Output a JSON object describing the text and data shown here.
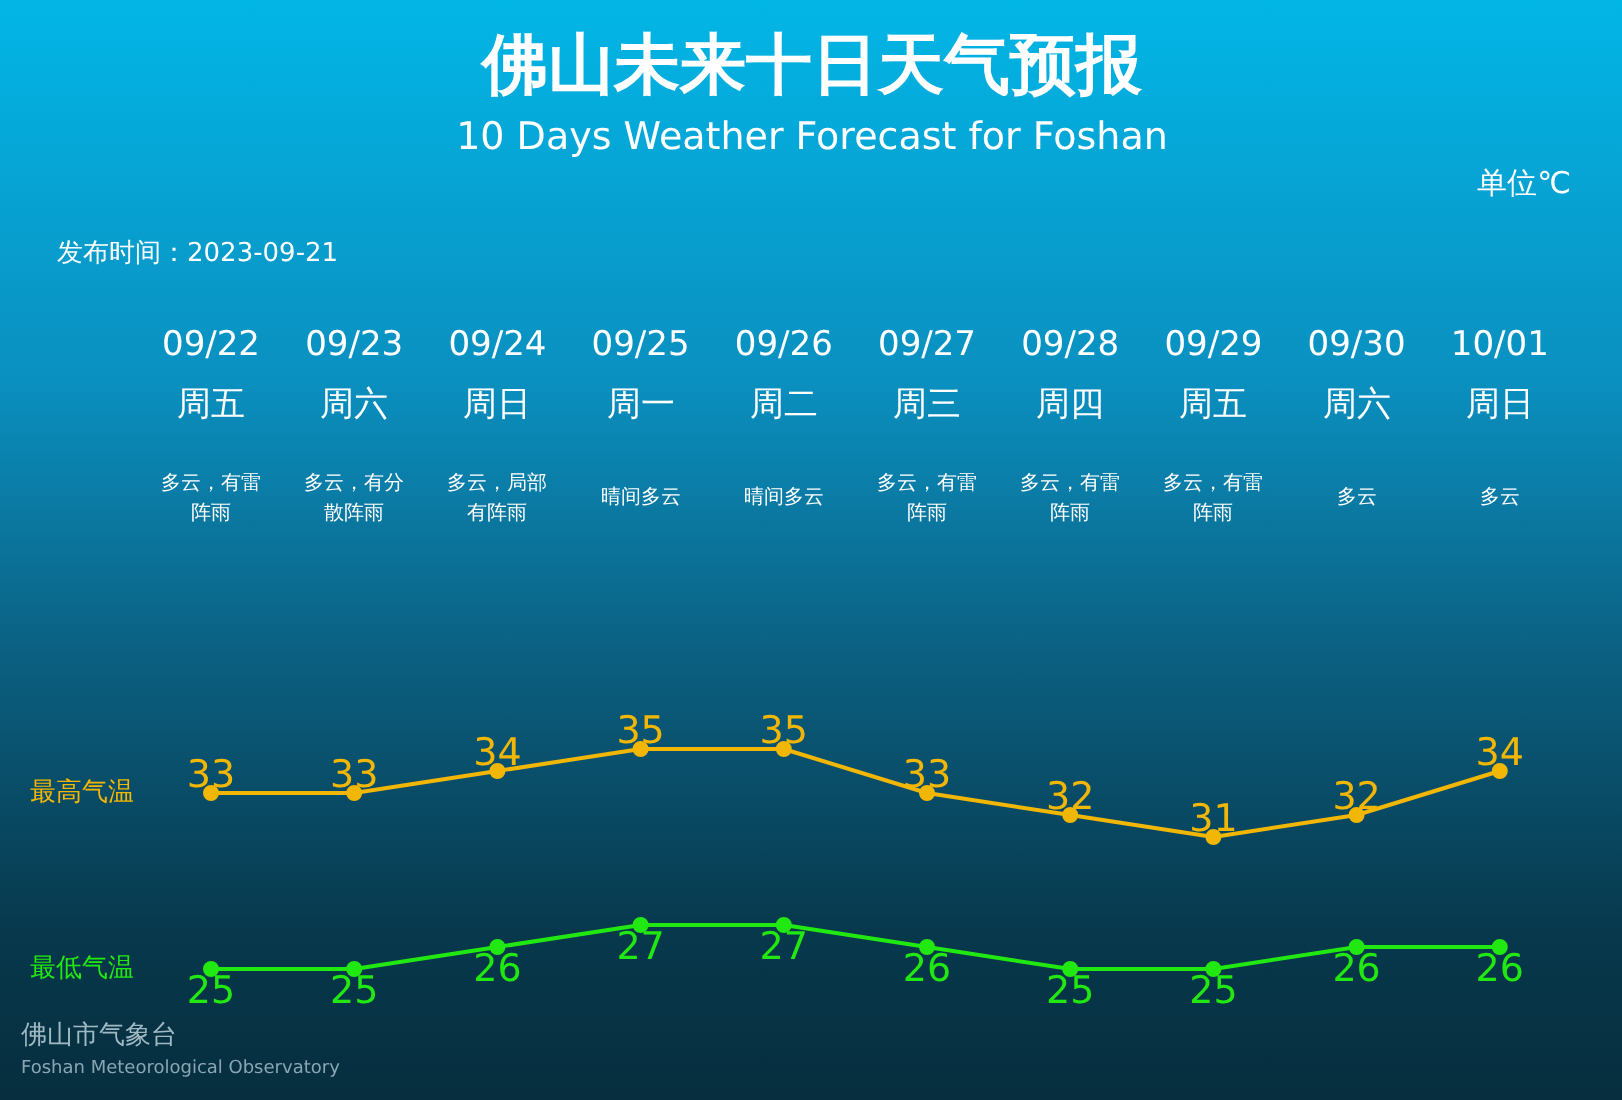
{
  "chart_data": {
    "type": "line",
    "title": "佛山未来十日天气预报",
    "subtitle": "10 Days Weather Forecast for Foshan",
    "categories": [
      "09/22\n周五",
      "09/23\n周六",
      "09/24\n周日",
      "09/25\n周一",
      "09/26\n周二",
      "09/27\n周三",
      "09/28\n周四",
      "09/29\n周五",
      "09/30\n周六",
      "10/01\n周日"
    ],
    "series": [
      {
        "name": "最高气温",
        "color": "#f2b705",
        "values": [
          33,
          33,
          34,
          35,
          35,
          33,
          32,
          31,
          32,
          34
        ]
      },
      {
        "name": "最低气温",
        "color": "#22e812",
        "values": [
          25,
          25,
          26,
          27,
          27,
          26,
          25,
          25,
          26,
          26
        ]
      }
    ],
    "marker": "circle",
    "data_labels": true,
    "annotations": [
      "单位℃",
      "发布时间：2023-09-21",
      "佛山市气象台",
      "Foshan Meteorological Observatory",
      "多云，有雷阵雨",
      "多云，有分散阵雨",
      "多云，局部有阵雨",
      "晴间多云",
      "晴间多云",
      "多云，有雷阵雨",
      "多云，有雷阵雨",
      "多云，有雷阵雨",
      "多云",
      "多云"
    ]
  }
}
